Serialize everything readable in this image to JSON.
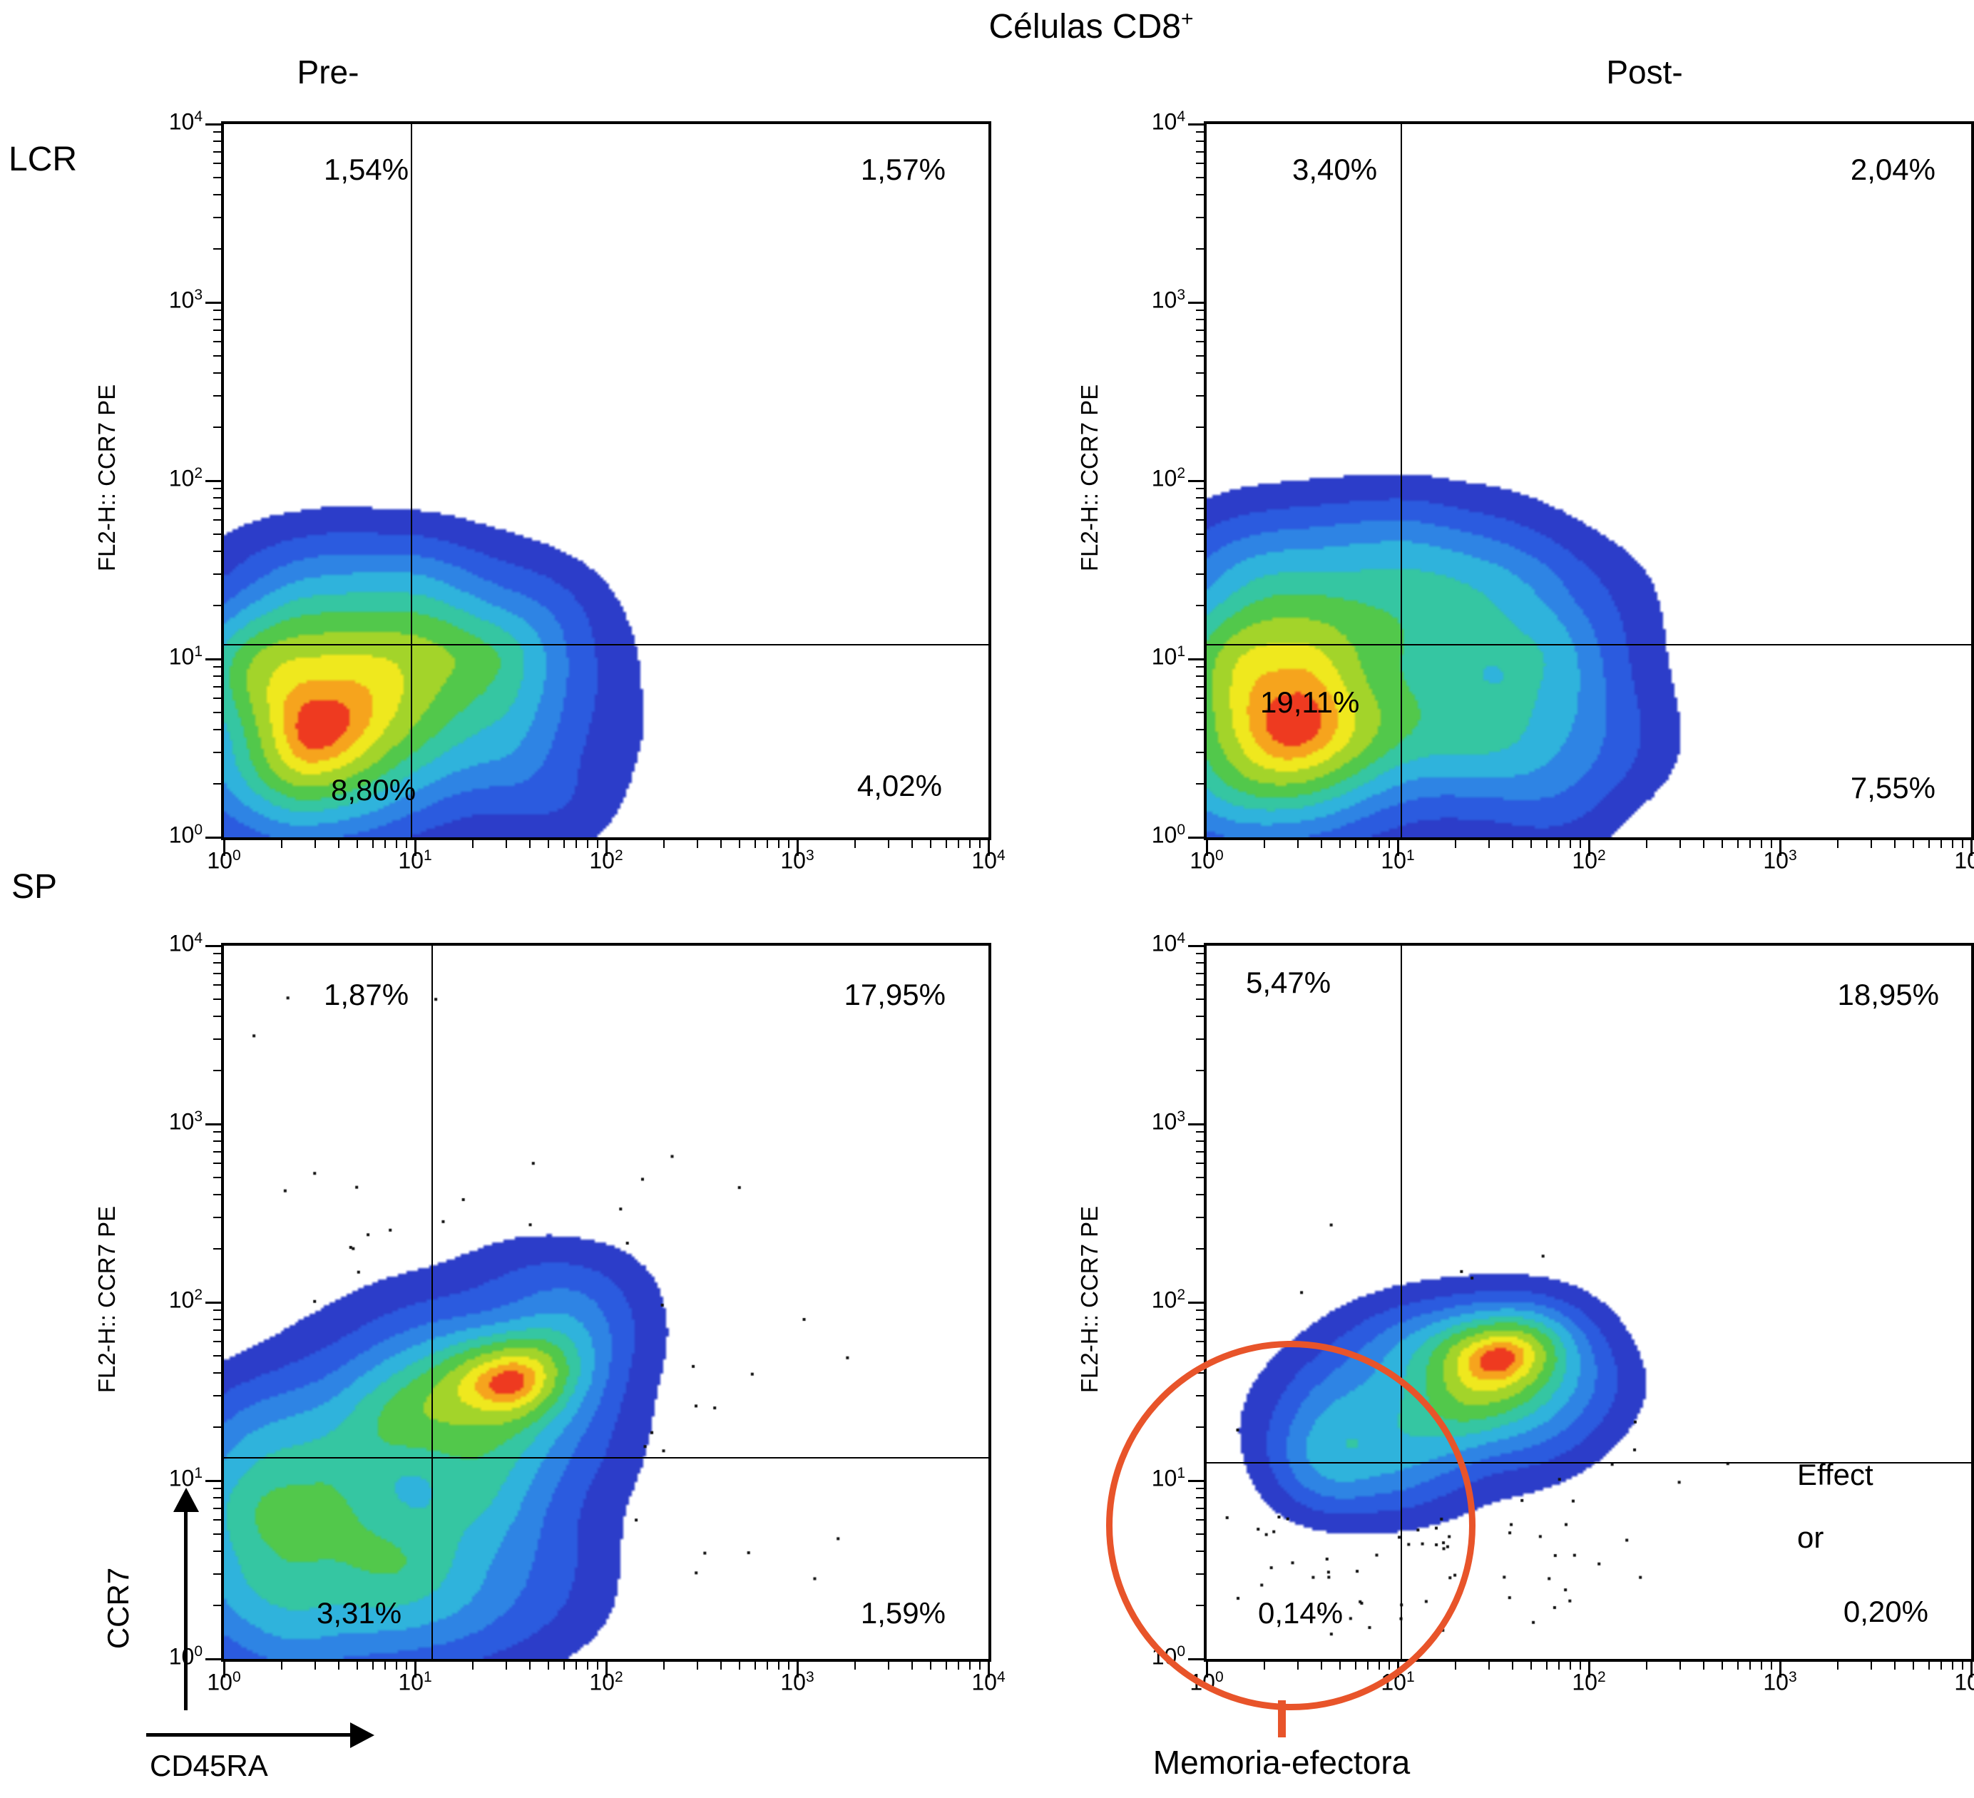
{
  "chart_data": {
    "type": "heatmap",
    "chart_kind": "flow-cytometry-density-quadrant-plots",
    "title": "Células CD8",
    "title_sup": "+",
    "col_labels": [
      "Pre-",
      "Post-"
    ],
    "row_labels": [
      "LCR",
      "SP"
    ],
    "x_axis": {
      "label": "CD45RA",
      "scale": "log",
      "range": [
        1,
        10000
      ]
    },
    "y_axis": {
      "label": "CCR7",
      "scale": "log",
      "range": [
        1,
        10000
      ]
    },
    "log_decades": [
      0,
      1,
      2,
      3,
      4
    ],
    "colormap": [
      {
        "t": 0.055,
        "c": "#2c3dc9"
      },
      {
        "t": 0.13,
        "c": "#2b5bdf"
      },
      {
        "t": 0.22,
        "c": "#2e84e4"
      },
      {
        "t": 0.32,
        "c": "#2fb3dc"
      },
      {
        "t": 0.43,
        "c": "#35c6a2"
      },
      {
        "t": 0.54,
        "c": "#52c84b"
      },
      {
        "t": 0.66,
        "c": "#a3d42a"
      },
      {
        "t": 0.78,
        "c": "#efe81e"
      },
      {
        "t": 0.875,
        "c": "#f6a41d"
      },
      {
        "t": 0.95,
        "c": "#ee3a20"
      }
    ],
    "panels": [
      {
        "id": "lcr-pre",
        "row": "LCR",
        "column": "Pre-",
        "y_axis_label": "FL2-H:: CCR7 PE",
        "gate": {
          "x_log": 0.98,
          "y_log": 1.08
        },
        "quadrants": {
          "tl": "1,54%",
          "tr": "1,57%",
          "bl": "8,80%",
          "br": "4,02%"
        },
        "quadrant_values": {
          "tl": 1.54,
          "tr": 1.57,
          "bl": 8.8,
          "br": 4.02
        },
        "population": {
          "seed": 3,
          "gaussians": [
            {
              "x": 0.5,
              "y": 0.75,
              "sx": 0.38,
              "sy": 0.33,
              "a": 1.15
            },
            {
              "x": 0.32,
              "y": 0.3,
              "sx": 0.4,
              "sy": 0.28,
              "a": 0.75
            },
            {
              "x": 1.0,
              "y": 0.95,
              "sx": 0.55,
              "sy": 0.4,
              "a": 0.65
            },
            {
              "x": 1.38,
              "y": 1.1,
              "sx": 0.35,
              "sy": 0.28,
              "a": 0.45
            },
            {
              "x": 0.8,
              "y": 1.38,
              "sx": 0.45,
              "sy": 0.25,
              "a": 0.35
            },
            {
              "x": 1.55,
              "y": 0.45,
              "sx": 0.35,
              "sy": 0.35,
              "a": 0.38
            },
            {
              "x": 0.18,
              "y": 1.1,
              "sx": 0.28,
              "sy": 0.3,
              "a": 0.45
            }
          ]
        }
      },
      {
        "id": "lcr-post",
        "row": "LCR",
        "column": "Post-",
        "y_axis_label": "FL2-H:: CCR7 PE",
        "gate": {
          "x_log": 1.02,
          "y_log": 1.08
        },
        "quadrants": {
          "tl": "3,40%",
          "tr": "2,04%",
          "bl": "19,11%",
          "br": "7,55%"
        },
        "quadrant_values": {
          "tl": 3.4,
          "tr": 2.04,
          "bl": 19.11,
          "br": 7.55
        },
        "population": {
          "seed": 7,
          "gaussians": [
            {
              "x": 0.45,
              "y": 0.85,
              "sx": 0.42,
              "sy": 0.36,
              "a": 1.2
            },
            {
              "x": 0.3,
              "y": 0.35,
              "sx": 0.42,
              "sy": 0.3,
              "a": 0.7
            },
            {
              "x": 1.05,
              "y": 1.0,
              "sx": 0.6,
              "sy": 0.45,
              "a": 0.6
            },
            {
              "x": 1.5,
              "y": 1.25,
              "sx": 0.38,
              "sy": 0.33,
              "a": 0.42
            },
            {
              "x": 1.7,
              "y": 0.5,
              "sx": 0.4,
              "sy": 0.35,
              "a": 0.4
            },
            {
              "x": 0.9,
              "y": 1.55,
              "sx": 0.5,
              "sy": 0.25,
              "a": 0.33
            },
            {
              "x": 0.12,
              "y": 1.35,
              "sx": 0.25,
              "sy": 0.3,
              "a": 0.4
            }
          ]
        }
      },
      {
        "id": "sp-pre",
        "row": "SP",
        "column": "Pre-",
        "y_axis_label": "FL2-H:: CCR7 PE",
        "gate": {
          "x_log": 1.09,
          "y_log": 1.13
        },
        "quadrants": {
          "tl": "1,87%",
          "tr": "17,95%",
          "bl": "3,31%",
          "br": "1,59%"
        },
        "quadrant_values": {
          "tl": 1.87,
          "tr": 17.95,
          "bl": 3.31,
          "br": 1.59
        },
        "population": {
          "seed": 11,
          "gaussians": [
            {
              "x": 1.52,
              "y": 1.6,
              "sx": 0.22,
              "sy": 0.17,
              "a": 1.2
            },
            {
              "x": 1.38,
              "y": 1.48,
              "sx": 0.45,
              "sy": 0.34,
              "a": 0.7
            },
            {
              "x": 0.95,
              "y": 1.05,
              "sx": 0.55,
              "sy": 0.5,
              "a": 0.6
            },
            {
              "x": 0.55,
              "y": 0.6,
              "sx": 0.5,
              "sy": 0.45,
              "a": 0.55
            },
            {
              "x": 0.28,
              "y": 0.95,
              "sx": 0.35,
              "sy": 0.35,
              "a": 0.45
            },
            {
              "x": 1.15,
              "y": 0.4,
              "sx": 0.5,
              "sy": 0.3,
              "a": 0.4
            },
            {
              "x": 1.8,
              "y": 1.95,
              "sx": 0.3,
              "sy": 0.25,
              "a": 0.35
            },
            {
              "x": 0.15,
              "y": 0.35,
              "sx": 0.3,
              "sy": 0.35,
              "a": 0.5
            }
          ],
          "dots": {
            "count": 170,
            "cx": 1.05,
            "cy": 1.2,
            "sx": 0.85,
            "sy": 0.85
          }
        }
      },
      {
        "id": "sp-post",
        "row": "SP",
        "column": "Post-",
        "y_axis_label": "FL2-H:: CCR7 PE",
        "gate": {
          "x_log": 1.02,
          "y_log": 1.1
        },
        "quadrants": {
          "tl": "5,47%",
          "tr": "18,95%",
          "bl": "0,14%",
          "br": "0,20%"
        },
        "quadrant_values": {
          "tl": 5.47,
          "tr": 18.95,
          "bl": 0.14,
          "br": 0.2
        },
        "effector_lines": [
          "Effect",
          "or"
        ],
        "annotation": {
          "label": "Memoria-efectora",
          "color": "#e8542a"
        },
        "population": {
          "seed": 17,
          "gaussians": [
            {
              "x": 1.52,
              "y": 1.75,
              "sx": 0.2,
              "sy": 0.14,
              "a": 1.2
            },
            {
              "x": 1.38,
              "y": 1.62,
              "sx": 0.4,
              "sy": 0.26,
              "a": 0.7
            },
            {
              "x": 1.05,
              "y": 1.35,
              "sx": 0.42,
              "sy": 0.3,
              "a": 0.55
            },
            {
              "x": 0.82,
              "y": 1.12,
              "sx": 0.3,
              "sy": 0.22,
              "a": 0.5
            },
            {
              "x": 1.75,
              "y": 1.55,
              "sx": 0.28,
              "sy": 0.28,
              "a": 0.33
            }
          ],
          "dots": {
            "count": 150,
            "cx": 1.15,
            "cy": 0.95,
            "sx": 0.6,
            "sy": 0.5
          }
        }
      }
    ]
  }
}
